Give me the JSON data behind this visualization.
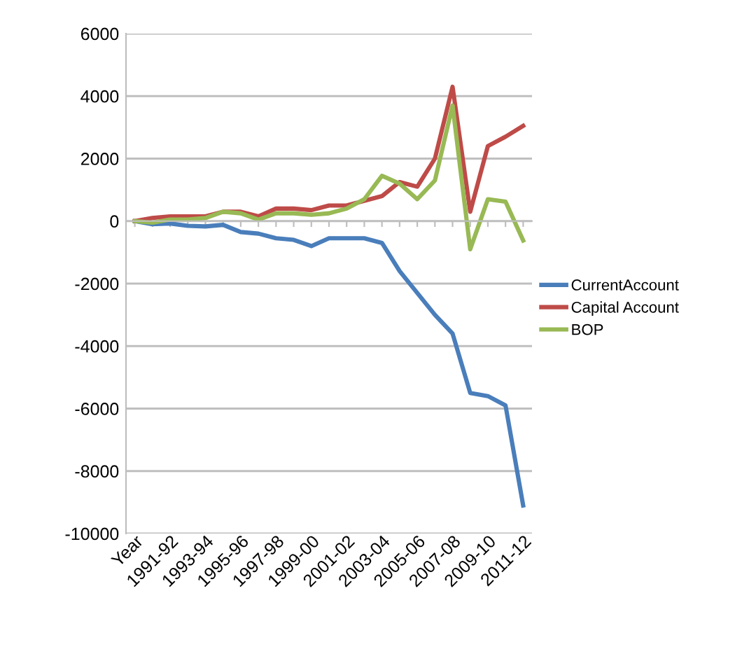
{
  "chart_data": {
    "type": "line",
    "categories": [
      "Year",
      null,
      "1991-92",
      null,
      "1993-94",
      null,
      "1995-96",
      null,
      "1997-98",
      null,
      "1999-00",
      null,
      "2001-02",
      null,
      "2003-04",
      null,
      "2005-06",
      null,
      "2007-08",
      null,
      "2009-10",
      null,
      "2011-12"
    ],
    "series": [
      {
        "name": "CurrentAccount",
        "color": "#4a7ebb",
        "values": [
          0,
          -100,
          -80,
          -150,
          -170,
          -120,
          -350,
          -400,
          -550,
          -600,
          -800,
          -550,
          -550,
          -550,
          -700,
          -1600,
          -2300,
          -3000,
          -3600,
          -5500,
          -5600,
          -5900,
          -9100
        ]
      },
      {
        "name": "Capital Account",
        "color": "#be4b48",
        "values": [
          0,
          100,
          150,
          150,
          150,
          300,
          300,
          150,
          400,
          400,
          350,
          500,
          500,
          650,
          800,
          1250,
          1100,
          2000,
          4300,
          300,
          2400,
          2700,
          3050
        ]
      },
      {
        "name": "BOP",
        "color": "#98b954",
        "values": [
          0,
          -50,
          50,
          50,
          100,
          300,
          250,
          50,
          250,
          250,
          200,
          250,
          400,
          700,
          1450,
          1200,
          700,
          1300,
          3700,
          -900,
          700,
          620,
          -620
        ]
      }
    ],
    "ylim": [
      -10000,
      6000
    ],
    "yticks": [
      -10000,
      -8000,
      -6000,
      -4000,
      -2000,
      0,
      2000,
      4000,
      6000
    ],
    "grid": "y",
    "legend": "right",
    "marker": "none",
    "line_style": "solid"
  }
}
